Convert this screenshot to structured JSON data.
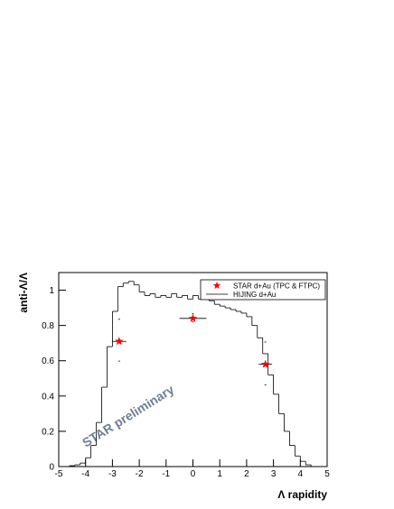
{
  "chart_data": {
    "type": "histogram",
    "name": "HIJING d+Au",
    "color": "#000000",
    "bins": [
      -4.6,
      -4.4,
      -4.2,
      -4,
      -3.8,
      -3.6,
      -3.4,
      -3.2,
      -3,
      -2.8,
      -2.6,
      -2.4,
      -2.2,
      -2,
      -1.8,
      -1.6,
      -1.4,
      -1.2,
      -1,
      -0.8,
      -0.6,
      -0.4,
      -0.2,
      0,
      0.2,
      0.4,
      0.6,
      0.8,
      1,
      1.2,
      1.4,
      1.6,
      1.8,
      2,
      2.2,
      2.4,
      2.6,
      2.8,
      3,
      3.2,
      3.4,
      3.6,
      3.8,
      4,
      4.2,
      4.4
    ],
    "values": [
      0.005,
      0.01,
      0.02,
      0.05,
      0.12,
      0.25,
      0.45,
      0.68,
      0.88,
      1.02,
      1.04,
      1.05,
      1.03,
      0.99,
      0.97,
      0.98,
      0.96,
      0.97,
      0.96,
      0.98,
      0.96,
      0.97,
      0.95,
      0.97,
      0.95,
      0.96,
      0.94,
      0.92,
      0.91,
      0.9,
      0.89,
      0.88,
      0.87,
      0.85,
      0.8,
      0.73,
      0.64,
      0.52,
      0.41,
      0.3,
      0.2,
      0.12,
      0.06,
      0.03,
      0.01
    ],
    "overlay": {
      "type": "scatter",
      "name": "STAR d+Au (TPC & FTPC)",
      "color": "#ff0000",
      "x": [
        -2.75,
        0,
        2.7
      ],
      "values": [
        0.71,
        0.84,
        0.58
      ],
      "xerr": [
        0.27,
        0.5,
        0.25
      ],
      "sys_low": [
        0.598,
        0.82,
        0.464
      ],
      "sys_high": [
        0.835,
        0.866,
        0.706
      ]
    },
    "xlabel": "Λ rapidity",
    "ylabel": "anti-Λ/Λ",
    "annotation": "STAR preliminary",
    "xlim": [
      -5,
      5
    ],
    "ylim": [
      0,
      1.1
    ],
    "xticks": [
      -5,
      -4,
      -3,
      -2,
      -1,
      0,
      1,
      2,
      3,
      4,
      5
    ],
    "yticks": [
      0,
      0.2,
      0.4,
      0.6,
      0.8,
      1
    ],
    "legend": "upper right"
  }
}
